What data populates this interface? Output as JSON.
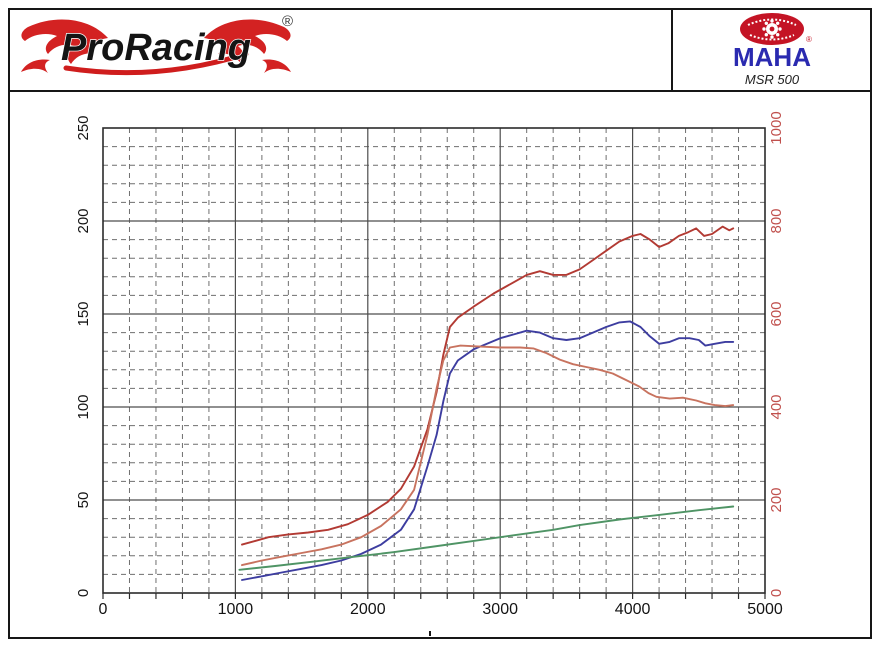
{
  "header": {
    "brand_text": "ProRacing",
    "registered_mark": "®",
    "maha": {
      "name": "MAHA",
      "model": "MSR 500",
      "mark": "®"
    }
  },
  "chart_data": {
    "type": "line",
    "title": "",
    "xlabel": "",
    "ylabel_left": "",
    "ylabel_right": "",
    "legend": "none",
    "grid": {
      "minor_color": "#6f6f6f",
      "major_color": "#4d4d4d",
      "border_color": "#2b2b2b",
      "minor_style": "dashed"
    },
    "x_axis": {
      "min": 0,
      "max": 5000,
      "major_step": 1000,
      "minor_step": 200,
      "labels": [
        "0",
        "1000",
        "2000",
        "3000",
        "4000",
        "5000"
      ],
      "label_color": "#141414"
    },
    "y_axis_left": {
      "min": 0,
      "max": 250,
      "major_step": 50,
      "minor_step": 10,
      "labels": [
        "0",
        "50",
        "100",
        "150",
        "200",
        "250"
      ],
      "label_color": "#141414"
    },
    "y_axis_right": {
      "min": 0,
      "max": 1000,
      "major_step": 200,
      "labels": [
        "0",
        "200",
        "400",
        "600",
        "800",
        "1000"
      ],
      "label_color": "#c0504d"
    },
    "series": [
      {
        "name": "red-upper-curve",
        "color": "#b23a33",
        "axis": "left",
        "points": [
          [
            1050,
            26
          ],
          [
            1150,
            28
          ],
          [
            1250,
            30
          ],
          [
            1400,
            31.5
          ],
          [
            1550,
            32.5
          ],
          [
            1700,
            34
          ],
          [
            1850,
            37
          ],
          [
            2000,
            42
          ],
          [
            2150,
            49
          ],
          [
            2250,
            56
          ],
          [
            2350,
            68
          ],
          [
            2450,
            88
          ],
          [
            2520,
            108
          ],
          [
            2570,
            128
          ],
          [
            2620,
            143
          ],
          [
            2680,
            148
          ],
          [
            2800,
            154
          ],
          [
            2950,
            161
          ],
          [
            3100,
            167
          ],
          [
            3200,
            171
          ],
          [
            3300,
            173
          ],
          [
            3400,
            171
          ],
          [
            3500,
            171
          ],
          [
            3600,
            174
          ],
          [
            3700,
            179
          ],
          [
            3800,
            184
          ],
          [
            3900,
            189
          ],
          [
            4000,
            192
          ],
          [
            4060,
            193
          ],
          [
            4130,
            190
          ],
          [
            4200,
            186
          ],
          [
            4270,
            188
          ],
          [
            4350,
            192
          ],
          [
            4420,
            194
          ],
          [
            4480,
            196
          ],
          [
            4540,
            192
          ],
          [
            4600,
            193
          ],
          [
            4680,
            197
          ],
          [
            4730,
            195
          ],
          [
            4760,
            196
          ]
        ]
      },
      {
        "name": "blue-curve",
        "color": "#3d3da0",
        "axis": "left",
        "points": [
          [
            1050,
            7
          ],
          [
            1200,
            9
          ],
          [
            1350,
            11
          ],
          [
            1500,
            13
          ],
          [
            1650,
            15
          ],
          [
            1800,
            17.5
          ],
          [
            1950,
            21
          ],
          [
            2100,
            26
          ],
          [
            2250,
            34
          ],
          [
            2350,
            45
          ],
          [
            2450,
            68
          ],
          [
            2520,
            85
          ],
          [
            2570,
            103
          ],
          [
            2620,
            118
          ],
          [
            2680,
            125
          ],
          [
            2800,
            131
          ],
          [
            2900,
            134
          ],
          [
            3000,
            137
          ],
          [
            3100,
            139
          ],
          [
            3200,
            141
          ],
          [
            3300,
            140
          ],
          [
            3400,
            137
          ],
          [
            3500,
            136
          ],
          [
            3600,
            137
          ],
          [
            3700,
            140
          ],
          [
            3800,
            143
          ],
          [
            3900,
            145.5
          ],
          [
            3980,
            146
          ],
          [
            4060,
            143
          ],
          [
            4130,
            138
          ],
          [
            4200,
            134
          ],
          [
            4280,
            135
          ],
          [
            4350,
            137
          ],
          [
            4430,
            137
          ],
          [
            4500,
            136
          ],
          [
            4550,
            133
          ],
          [
            4620,
            134
          ],
          [
            4700,
            135
          ],
          [
            4760,
            135
          ]
        ]
      },
      {
        "name": "orange-lower-curve",
        "color": "#c8735f",
        "axis": "right",
        "points": [
          [
            1050,
            60
          ],
          [
            1200,
            70
          ],
          [
            1350,
            78
          ],
          [
            1500,
            86
          ],
          [
            1650,
            94
          ],
          [
            1800,
            104
          ],
          [
            1950,
            120
          ],
          [
            2100,
            144
          ],
          [
            2250,
            180
          ],
          [
            2350,
            222
          ],
          [
            2450,
            340
          ],
          [
            2520,
            440
          ],
          [
            2570,
            500
          ],
          [
            2620,
            528
          ],
          [
            2700,
            532
          ],
          [
            2850,
            530
          ],
          [
            3000,
            528
          ],
          [
            3150,
            528
          ],
          [
            3250,
            526
          ],
          [
            3350,
            516
          ],
          [
            3450,
            502
          ],
          [
            3550,
            492
          ],
          [
            3650,
            486
          ],
          [
            3750,
            480
          ],
          [
            3850,
            472
          ],
          [
            3950,
            458
          ],
          [
            4050,
            444
          ],
          [
            4120,
            430
          ],
          [
            4180,
            422
          ],
          [
            4280,
            418
          ],
          [
            4380,
            420
          ],
          [
            4480,
            414
          ],
          [
            4550,
            408
          ],
          [
            4620,
            404
          ],
          [
            4700,
            402
          ],
          [
            4760,
            404
          ]
        ]
      },
      {
        "name": "green-curve",
        "color": "#4f9465",
        "axis": "left",
        "points": [
          [
            1030,
            12.5
          ],
          [
            1300,
            14.5
          ],
          [
            1600,
            17
          ],
          [
            1900,
            19.5
          ],
          [
            2200,
            22
          ],
          [
            2500,
            25
          ],
          [
            2800,
            28
          ],
          [
            3100,
            31
          ],
          [
            3400,
            34
          ],
          [
            3600,
            36.5
          ],
          [
            3900,
            39.5
          ],
          [
            4200,
            42
          ],
          [
            4500,
            44.5
          ],
          [
            4760,
            46.5
          ]
        ]
      }
    ]
  }
}
